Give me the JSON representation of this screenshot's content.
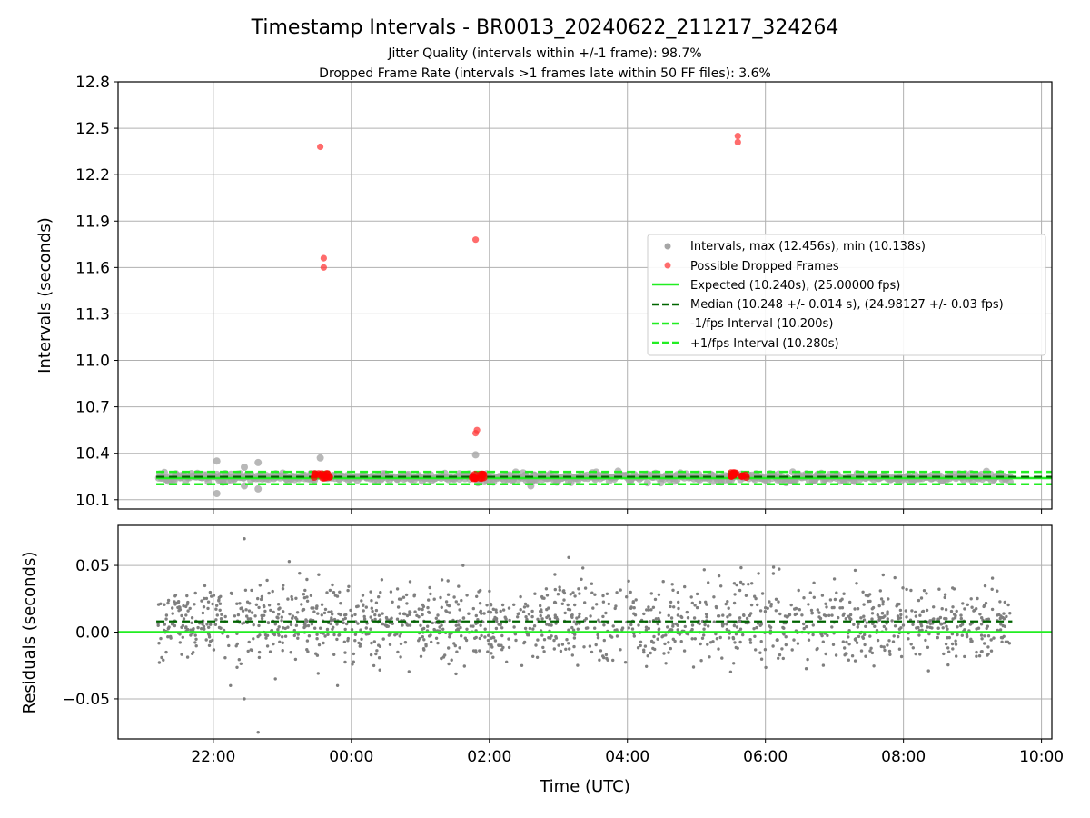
{
  "figure": {
    "title": "Timestamp Intervals - BR0013_20240622_211217_324264",
    "subtitle_line1": "Jitter Quality (intervals within +/-1 frame): 98.7%",
    "subtitle_line2": "Dropped Frame Rate (intervals >1 frames late within 50 FF files): 3.6%"
  },
  "colors": {
    "intervals": "#a6a6a6",
    "dropped": "#ff0000",
    "expected": "#22ee22",
    "median": "#006400",
    "fps_band": "#22ee22",
    "residuals": "#7f7f7f",
    "grid": "#b0b0b0"
  },
  "chart_data": [
    {
      "type": "scatter",
      "panel": "top",
      "xlabel": "",
      "ylabel": "Intervals (seconds)",
      "x_ticks": [
        "22:00",
        "00:00",
        "02:00",
        "04:00",
        "06:00",
        "08:00",
        "10:00"
      ],
      "x_tick_hours": [
        22,
        24,
        26,
        28,
        30,
        32,
        34
      ],
      "xlim_hours": [
        20.62,
        34.15
      ],
      "ylim": [
        10.04,
        12.8
      ],
      "y_ticks": [
        "10.1",
        "10.4",
        "10.7",
        "11.0",
        "11.3",
        "11.6",
        "11.9",
        "12.2",
        "12.5",
        "12.8"
      ],
      "grid": true,
      "legend_position": "center-right",
      "legend": [
        {
          "key": "intervals",
          "label": "Intervals, max (12.456s), min (10.138s)"
        },
        {
          "key": "dropped",
          "label": "Possible Dropped Frames"
        },
        {
          "key": "expected",
          "label": "Expected (10.240s), (25.00000 fps)"
        },
        {
          "key": "median",
          "label": "Median (10.248 +/- 0.014 s), (24.98127 +/- 0.03 fps)"
        },
        {
          "key": "minus",
          "label": "-1/fps Interval (10.200s)"
        },
        {
          "key": "plus",
          "label": "+1/fps Interval (10.280s)"
        }
      ],
      "series": [
        {
          "name": "Expected (10.240s), (25.00000 fps)",
          "style": "solid",
          "y": 10.24
        },
        {
          "name": "Median (10.248 +/- 0.014 s), (24.98127 +/- 0.03 fps)",
          "style": "dashed",
          "y": 10.248
        },
        {
          "name": "-1/fps Interval (10.200s)",
          "style": "dashed",
          "y": 10.2
        },
        {
          "name": "+1/fps Interval (10.280s)",
          "style": "dashed",
          "y": 10.28
        },
        {
          "name": "Intervals, max (12.456s), min (10.138s)",
          "x_range_hours": [
            21.2,
            33.55
          ],
          "y_range": [
            10.2,
            10.29
          ],
          "outliers": [
            [
              22.05,
              10.35
            ],
            [
              22.05,
              10.14
            ],
            [
              22.45,
              10.31
            ],
            [
              22.45,
              10.19
            ],
            [
              22.65,
              10.34
            ],
            [
              22.65,
              10.17
            ],
            [
              23.55,
              10.37
            ],
            [
              25.8,
              10.39
            ],
            [
              26.6,
              10.19
            ]
          ]
        },
        {
          "name": "Possible Dropped Frames",
          "points": [
            [
              23.55,
              12.38
            ],
            [
              23.6,
              11.66
            ],
            [
              23.6,
              11.6
            ],
            [
              25.8,
              11.78
            ],
            [
              25.82,
              10.55
            ],
            [
              25.8,
              10.53
            ],
            [
              29.6,
              12.45
            ],
            [
              29.6,
              12.41
            ]
          ],
          "clusters": [
            [
              23.45,
              23.7,
              10.255
            ],
            [
              25.75,
              25.95,
              10.25
            ],
            [
              29.5,
              29.75,
              10.26
            ]
          ]
        }
      ]
    },
    {
      "type": "scatter",
      "panel": "bottom",
      "xlabel": "Time (UTC)",
      "ylabel": "Residuals (seconds)",
      "x_ticks": [
        "22:00",
        "00:00",
        "02:00",
        "04:00",
        "06:00",
        "08:00",
        "10:00"
      ],
      "ylim": [
        -0.08,
        0.08
      ],
      "y_ticks": [
        "−0.05",
        "0.00",
        "0.05"
      ],
      "y_tick_values": [
        -0.05,
        0.0,
        0.05
      ],
      "grid": true,
      "series": [
        {
          "name": "Expected",
          "style": "solid",
          "y": 0.0
        },
        {
          "name": "Median",
          "style": "dashed",
          "y": 0.008
        },
        {
          "name": "Residuals",
          "x_range_hours": [
            21.2,
            33.55
          ],
          "y_range": [
            -0.036,
            0.05
          ],
          "outliers": [
            [
              22.45,
              0.07
            ],
            [
              22.65,
              -0.075
            ],
            [
              22.45,
              -0.05
            ],
            [
              22.25,
              -0.04
            ],
            [
              23.8,
              -0.04
            ],
            [
              23.1,
              0.053
            ],
            [
              27.15,
              0.056
            ],
            [
              22.9,
              -0.035
            ],
            [
              29.9,
              0.044
            ]
          ]
        }
      ]
    }
  ]
}
